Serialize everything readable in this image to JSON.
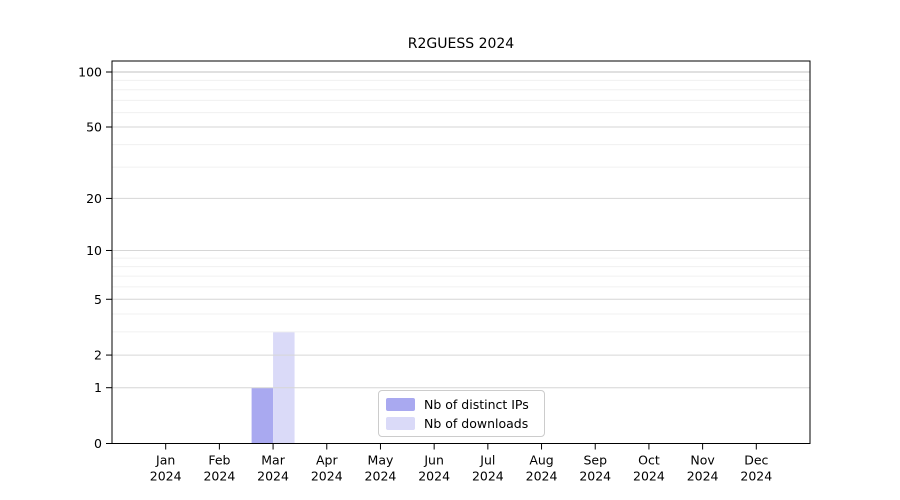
{
  "chart_data": {
    "type": "bar",
    "title": "R2GUESS 2024",
    "x_year_label": "2024",
    "categories": [
      "Jan",
      "Feb",
      "Mar",
      "Apr",
      "May",
      "Jun",
      "Jul",
      "Aug",
      "Sep",
      "Oct",
      "Nov",
      "Dec"
    ],
    "series": [
      {
        "name": "Nb of distinct IPs",
        "color": "#a9a9f0",
        "values": [
          0,
          0,
          1,
          0,
          0,
          0,
          0,
          0,
          0,
          0,
          0,
          0
        ]
      },
      {
        "name": "Nb of downloads",
        "color": "#dadaf8",
        "values": [
          0,
          0,
          3,
          0,
          0,
          0,
          0,
          0,
          0,
          0,
          0,
          0
        ]
      }
    ],
    "yscale": "log1p",
    "ylim": [
      0,
      115
    ],
    "y_major_ticks": [
      0,
      1,
      2,
      5,
      10,
      20,
      50,
      100
    ],
    "y_minor_ticks": [
      3,
      4,
      6,
      7,
      8,
      9,
      30,
      40,
      60,
      70,
      80,
      90
    ],
    "grid": "horizontal",
    "grid_color_major": "#d6d6d6",
    "grid_color_minor": "#f0f0f0",
    "grid_color_top": "#c0c0c0",
    "axis_color": "#000000",
    "legend_position": "inside-bottom-center"
  }
}
